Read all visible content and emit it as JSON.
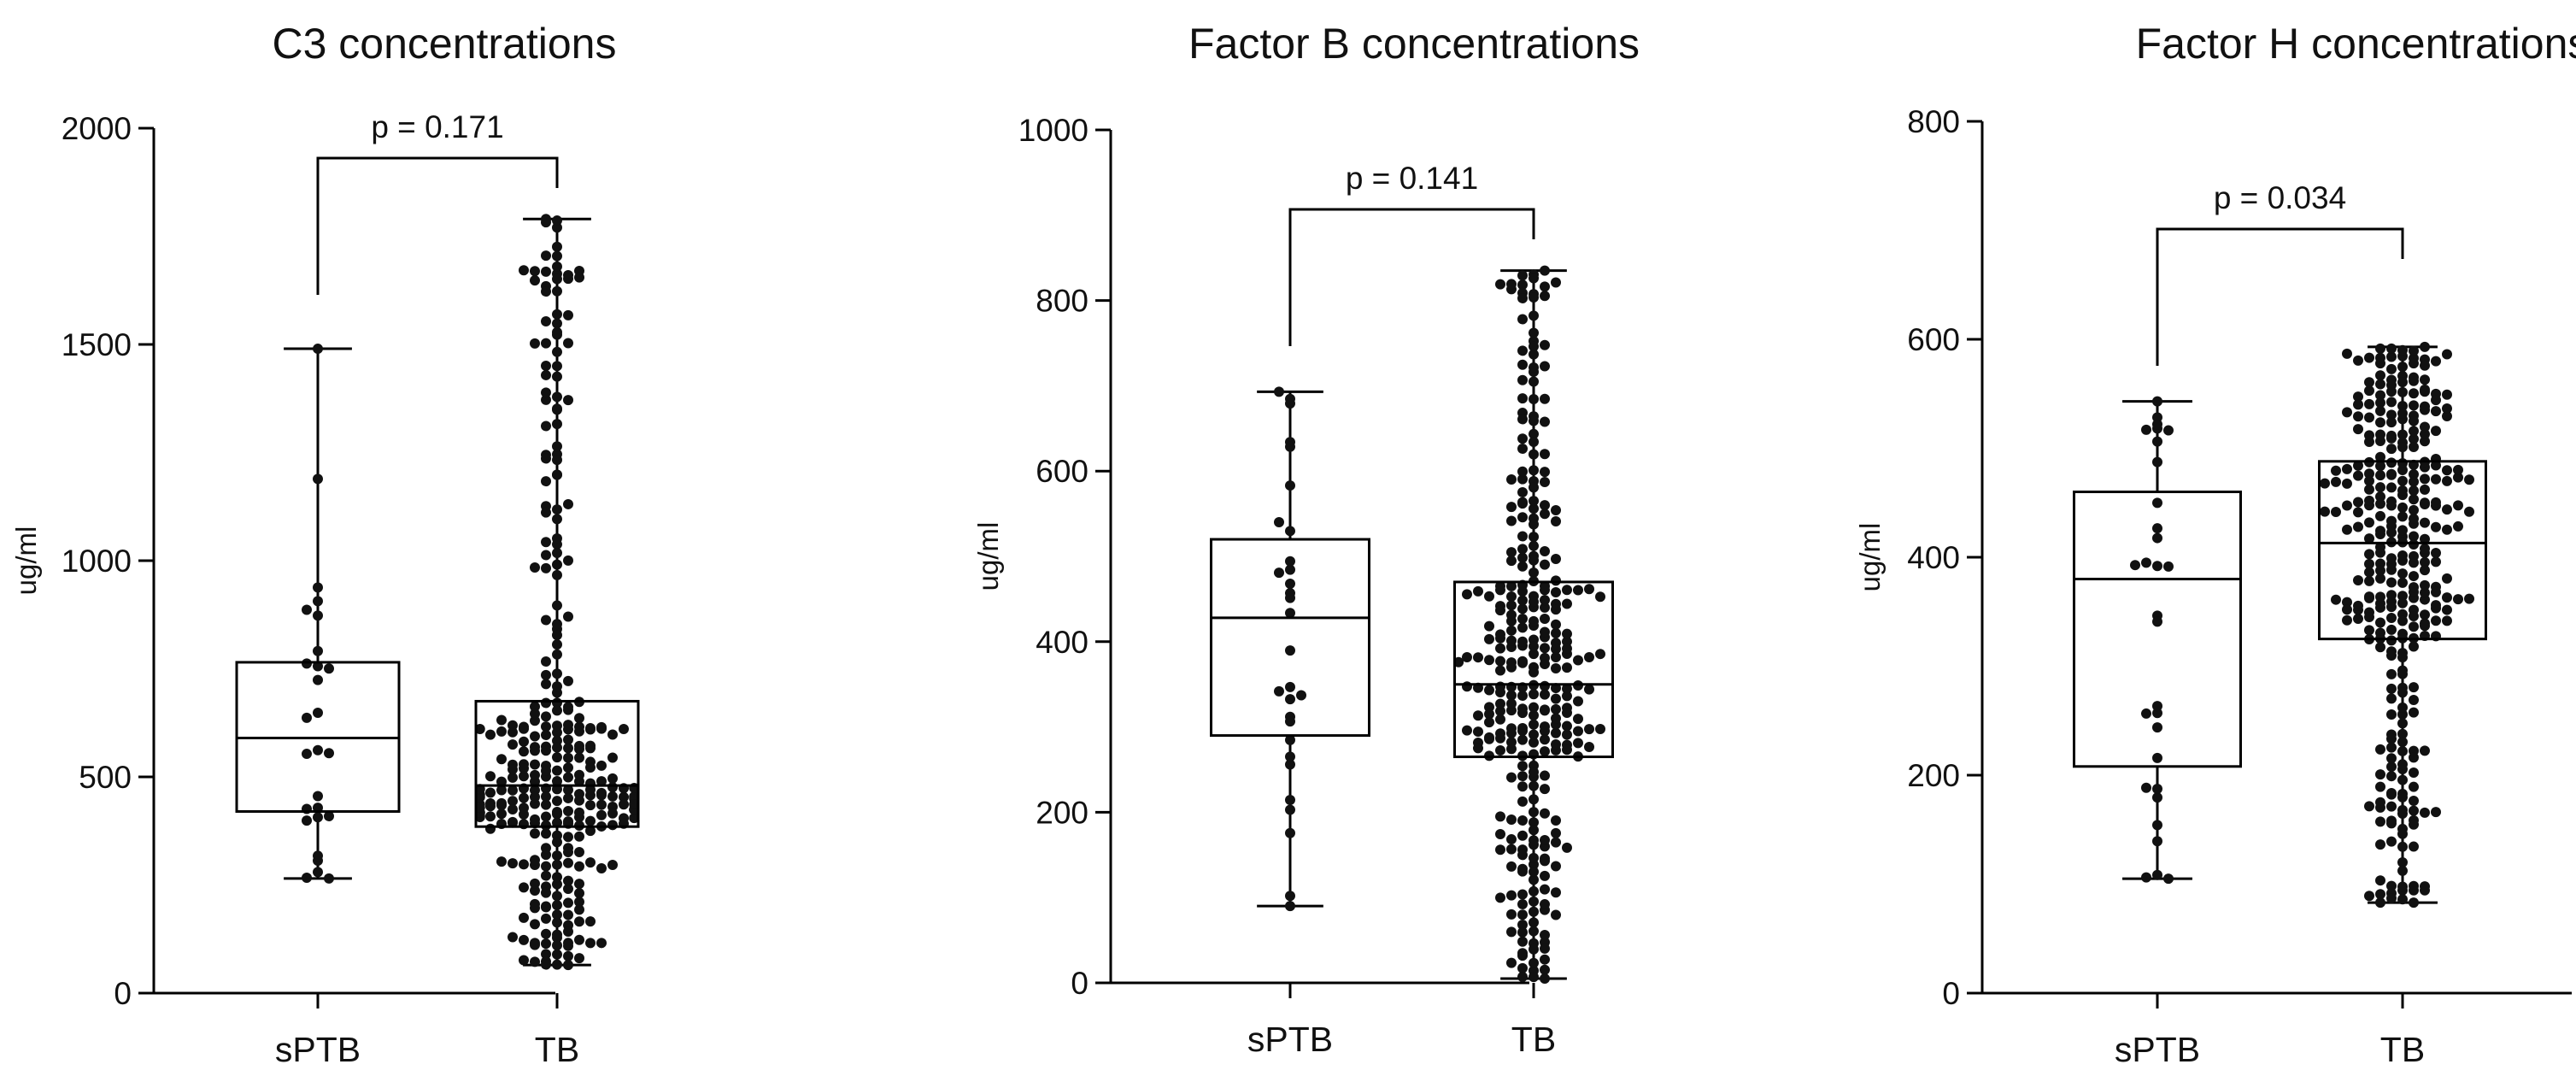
{
  "chart_data": [
    {
      "type": "box",
      "title": "C3 concentrations",
      "ylabel": "ug/ml",
      "ylim": [
        0,
        2000
      ],
      "yticks": [
        0,
        500,
        1000,
        1500,
        2000
      ],
      "categories": [
        "sPTB",
        "TB"
      ],
      "comparison": {
        "label": "p = 0.171",
        "p_value": 0.171
      },
      "groups": [
        {
          "name": "sPTB",
          "min": 265,
          "q1": 420,
          "median": 590,
          "q3": 765,
          "max": 1490,
          "n": 25
        },
        {
          "name": "TB",
          "min": 65,
          "q1": 385,
          "median": 480,
          "q3": 675,
          "max": 1790,
          "n": 320
        }
      ]
    },
    {
      "type": "box",
      "title": "Factor B concentrations",
      "ylabel": "ug/ml",
      "ylim": [
        0,
        1000
      ],
      "yticks": [
        0,
        200,
        400,
        600,
        800,
        1000
      ],
      "categories": [
        "sPTB",
        "TB"
      ],
      "comparison": {
        "label": "p = 0.141",
        "p_value": 0.141
      },
      "groups": [
        {
          "name": "sPTB",
          "min": 90,
          "q1": 290,
          "median": 428,
          "q3": 520,
          "max": 693,
          "n": 28
        },
        {
          "name": "TB",
          "min": 5,
          "q1": 265,
          "median": 350,
          "q3": 470,
          "max": 835,
          "n": 320
        }
      ]
    },
    {
      "type": "box",
      "title": "Factor H concentrations",
      "ylabel": "ug/ml",
      "ylim": [
        0,
        800
      ],
      "yticks": [
        0,
        200,
        400,
        600,
        800
      ],
      "categories": [
        "sPTB",
        "TB"
      ],
      "comparison": {
        "label": "p = 0.034",
        "p_value": 0.034
      },
      "groups": [
        {
          "name": "sPTB",
          "min": 105,
          "q1": 208,
          "median": 380,
          "q3": 460,
          "max": 543,
          "n": 28
        },
        {
          "name": "TB",
          "min": 83,
          "q1": 325,
          "median": 413,
          "q3": 488,
          "max": 593,
          "n": 330
        }
      ]
    }
  ]
}
